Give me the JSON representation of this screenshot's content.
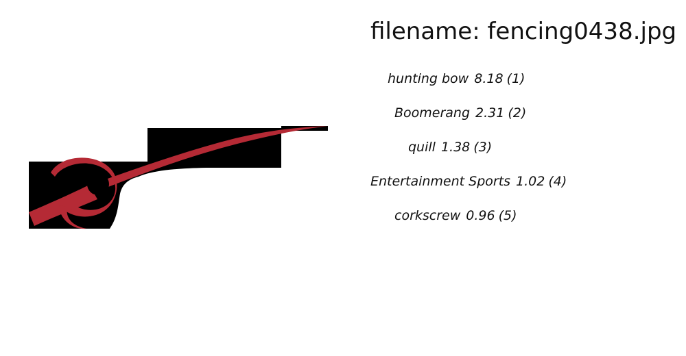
{
  "filename": {
    "label": "filename: fencing0438.jpg"
  },
  "image": {
    "icon": "fencing-logo-icon",
    "colors": {
      "background": "#000000",
      "mark": "#b52a35"
    }
  },
  "predictions": [
    {
      "label": "hunting bow",
      "score": "8.18",
      "rank": "(1)"
    },
    {
      "label": "Boomerang",
      "score": "2.31",
      "rank": "(2)"
    },
    {
      "label": "quill",
      "score": "1.38",
      "rank": "(3)"
    },
    {
      "label": "Entertainment Sports",
      "score": "1.02",
      "rank": "(4)"
    },
    {
      "label": "corkscrew",
      "score": "0.96",
      "rank": "(5)"
    }
  ]
}
